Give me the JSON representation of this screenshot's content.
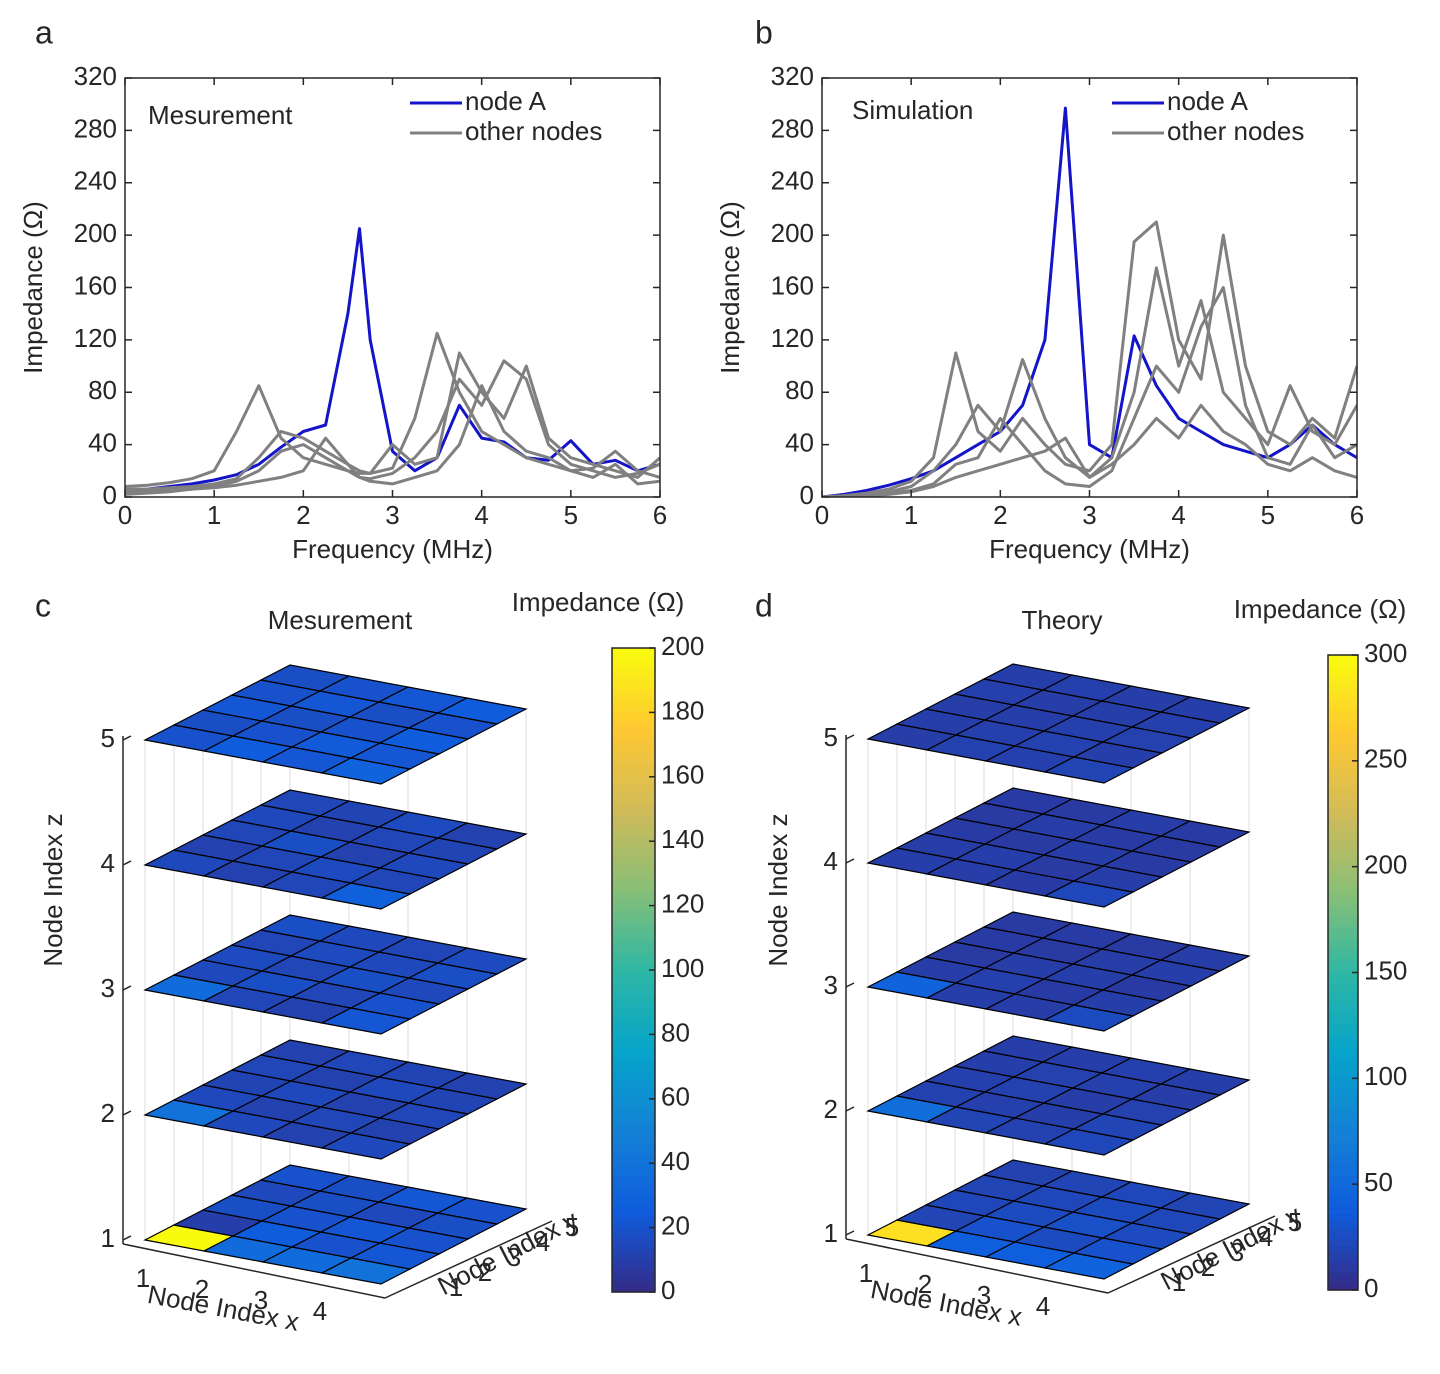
{
  "chart_data": [
    {
      "type": "line",
      "panel_label": "a",
      "annotation": "Mesurement",
      "xlabel": "Frequency (MHz)",
      "ylabel": "Impedance (Ω)",
      "xlim": [
        0,
        6
      ],
      "xticks": [
        0,
        1,
        2,
        3,
        4,
        5,
        6
      ],
      "ylim": [
        0,
        320
      ],
      "yticks": [
        0,
        40,
        80,
        120,
        160,
        200,
        240,
        280,
        320
      ],
      "x": [
        0,
        0.25,
        0.5,
        0.75,
        1,
        1.25,
        1.5,
        1.75,
        2,
        2.25,
        2.5,
        2.63,
        2.75,
        3,
        3.25,
        3.5,
        3.75,
        4,
        4.25,
        4.5,
        4.75,
        5,
        5.25,
        5.5,
        5.75,
        6
      ],
      "series": [
        {
          "name": "node A",
          "color": "#1414c8",
          "values": [
            5,
            6,
            8,
            10,
            13,
            17,
            25,
            38,
            50,
            55,
            140,
            205,
            120,
            35,
            20,
            30,
            70,
            45,
            42,
            30,
            28,
            43,
            25,
            28,
            20,
            25
          ]
        },
        {
          "name": "other nodes",
          "color": "#808080",
          "values": [
            [
              8,
              9,
              11,
              14,
              20,
              50,
              85,
              45,
              30,
              25,
              20,
              18,
              18,
              22,
              60,
              125,
              80,
              50,
              40,
              30,
              25,
              20,
              22,
              35,
              20,
              15
            ],
            [
              2,
              3,
              4,
              6,
              8,
              12,
              20,
              35,
              40,
              30,
              20,
              15,
              14,
              18,
              30,
              50,
              90,
              70,
              104,
              90,
              40,
              25,
              20,
              15,
              18,
              25
            ],
            [
              6,
              6,
              7,
              8,
              10,
              14,
              30,
              50,
              45,
              35,
              25,
              20,
              18,
              40,
              25,
              30,
              110,
              80,
              60,
              100,
              45,
              30,
              25,
              20,
              15,
              30
            ],
            [
              4,
              4,
              5,
              6,
              7,
              9,
              12,
              15,
              20,
              45,
              25,
              15,
              12,
              10,
              15,
              20,
              40,
              85,
              50,
              35,
              30,
              20,
              15,
              25,
              10,
              12
            ]
          ]
        }
      ]
    },
    {
      "type": "line",
      "panel_label": "b",
      "annotation": "Simulation",
      "xlabel": "Frequency (MHz)",
      "ylabel": "Impedance (Ω)",
      "xlim": [
        0,
        6
      ],
      "xticks": [
        0,
        1,
        2,
        3,
        4,
        5,
        6
      ],
      "ylim": [
        0,
        320
      ],
      "yticks": [
        0,
        40,
        80,
        120,
        160,
        200,
        240,
        280,
        320
      ],
      "x": [
        0,
        0.25,
        0.5,
        0.75,
        1,
        1.25,
        1.5,
        1.75,
        2,
        2.25,
        2.5,
        2.73,
        3,
        3.25,
        3.5,
        3.75,
        4,
        4.25,
        4.5,
        4.75,
        5,
        5.25,
        5.5,
        5.75,
        6
      ],
      "series": [
        {
          "name": "node A",
          "color": "#1414c8",
          "values": [
            0,
            2,
            5,
            9,
            14,
            20,
            30,
            40,
            50,
            70,
            120,
            297,
            40,
            30,
            123,
            85,
            60,
            50,
            40,
            35,
            30,
            40,
            55,
            40,
            30
          ]
        },
        {
          "name": "other nodes",
          "color": "#808080",
          "values": [
            [
              0,
              1,
              3,
              6,
              12,
              30,
              110,
              50,
              35,
              60,
              40,
              25,
              20,
              40,
              195,
              210,
              120,
              90,
              200,
              100,
              50,
              40,
              60,
              45,
              100
            ],
            [
              0,
              1,
              2,
              4,
              8,
              20,
              40,
              70,
              50,
              105,
              60,
              30,
              15,
              30,
              80,
              175,
              100,
              150,
              80,
              60,
              40,
              85,
              50,
              40,
              70
            ],
            [
              0,
              0,
              1,
              3,
              5,
              10,
              25,
              30,
              60,
              40,
              20,
              10,
              8,
              20,
              60,
              100,
              80,
              130,
              160,
              70,
              30,
              25,
              55,
              30,
              40
            ],
            [
              0,
              0,
              1,
              2,
              4,
              8,
              15,
              20,
              25,
              30,
              35,
              45,
              15,
              25,
              40,
              60,
              45,
              70,
              50,
              40,
              25,
              20,
              30,
              20,
              15
            ]
          ]
        }
      ]
    },
    {
      "type": "heatmap3d",
      "panel_label": "c",
      "title": "Mesurement",
      "colorbar_label": "Impedance (Ω)",
      "xlabel": "Node Index x",
      "ylabel": "Node Index y",
      "zlabel": "Node Index z",
      "xlim": [
        1,
        5
      ],
      "xticks": [
        1,
        2,
        3,
        4
      ],
      "ylim": [
        1,
        6
      ],
      "yticks": [
        1,
        2,
        3,
        4,
        5
      ],
      "zlim": [
        1,
        5
      ],
      "zticks": [
        1,
        2,
        3,
        4,
        5
      ],
      "clim": [
        0,
        200
      ],
      "cticks": [
        0,
        20,
        40,
        60,
        80,
        100,
        120,
        140,
        160,
        180,
        200
      ],
      "colormap": "parula",
      "values": [
        [
          [
            200,
            35,
            35,
            40
          ],
          [
            10,
            25,
            20,
            22
          ],
          [
            18,
            20,
            22,
            20
          ],
          [
            15,
            18,
            15,
            18
          ],
          [
            20,
            18,
            22,
            20
          ]
        ],
        [
          [
            40,
            15,
            12,
            15
          ],
          [
            15,
            12,
            14,
            12
          ],
          [
            13,
            15,
            12,
            14
          ],
          [
            14,
            12,
            15,
            13
          ],
          [
            12,
            14,
            13,
            12
          ]
        ],
        [
          [
            35,
            14,
            12,
            22
          ],
          [
            15,
            18,
            14,
            20
          ],
          [
            16,
            14,
            18,
            15
          ],
          [
            14,
            16,
            15,
            18
          ],
          [
            18,
            15,
            14,
            16
          ]
        ],
        [
          [
            15,
            12,
            14,
            28
          ],
          [
            12,
            14,
            16,
            14
          ],
          [
            14,
            18,
            12,
            15
          ],
          [
            15,
            12,
            14,
            13
          ],
          [
            14,
            13,
            16,
            12
          ]
        ],
        [
          [
            20,
            25,
            22,
            30
          ],
          [
            18,
            20,
            24,
            22
          ],
          [
            22,
            18,
            20,
            25
          ],
          [
            20,
            22,
            18,
            20
          ],
          [
            18,
            20,
            22,
            25
          ]
        ]
      ]
    },
    {
      "type": "heatmap3d",
      "panel_label": "d",
      "title": "Theory",
      "colorbar_label": "Impedance (Ω)",
      "xlabel": "Node Index x",
      "ylabel": "Node Index y",
      "zlabel": "Node Index z",
      "xlim": [
        1,
        5
      ],
      "xticks": [
        1,
        2,
        3,
        4
      ],
      "ylim": [
        1,
        6
      ],
      "yticks": [
        1,
        2,
        3,
        4,
        5
      ],
      "zlim": [
        1,
        5
      ],
      "zticks": [
        1,
        2,
        3,
        4,
        5
      ],
      "clim": [
        0,
        300
      ],
      "cticks": [
        0,
        50,
        100,
        150,
        200,
        250,
        300
      ],
      "colormap": "parula",
      "values": [
        [
          [
            280,
            40,
            40,
            45
          ],
          [
            20,
            30,
            25,
            30
          ],
          [
            22,
            25,
            28,
            24
          ],
          [
            20,
            22,
            25,
            22
          ],
          [
            18,
            20,
            22,
            20
          ]
        ],
        [
          [
            55,
            20,
            18,
            22
          ],
          [
            18,
            16,
            15,
            20
          ],
          [
            16,
            18,
            14,
            17
          ],
          [
            15,
            17,
            16,
            14
          ],
          [
            14,
            15,
            16,
            15
          ]
        ],
        [
          [
            45,
            15,
            14,
            25
          ],
          [
            14,
            16,
            13,
            15
          ],
          [
            12,
            14,
            15,
            13
          ],
          [
            13,
            12,
            14,
            15
          ],
          [
            12,
            13,
            12,
            14
          ]
        ],
        [
          [
            15,
            14,
            13,
            22
          ],
          [
            14,
            15,
            12,
            14
          ],
          [
            13,
            12,
            14,
            13
          ],
          [
            12,
            14,
            13,
            12
          ],
          [
            13,
            12,
            14,
            13
          ]
        ],
        [
          [
            14,
            18,
            16,
            20
          ],
          [
            15,
            16,
            18,
            15
          ],
          [
            14,
            15,
            16,
            17
          ],
          [
            16,
            14,
            15,
            16
          ],
          [
            15,
            16,
            14,
            15
          ]
        ]
      ]
    }
  ]
}
